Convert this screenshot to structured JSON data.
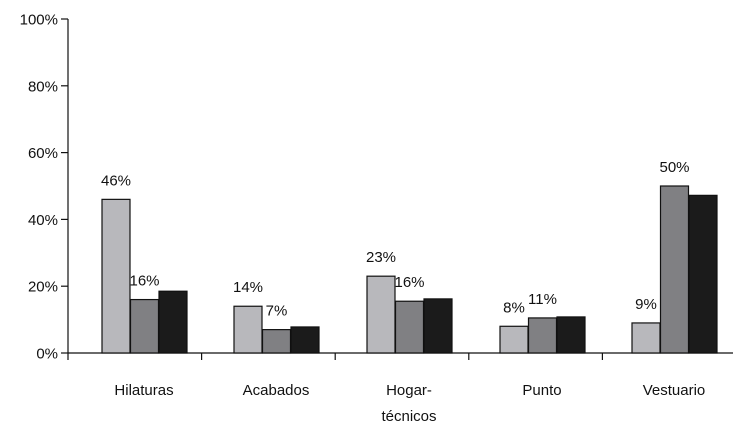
{
  "chart_data": {
    "type": "bar",
    "categories": [
      [
        "Hilaturas"
      ],
      [
        "Acabados"
      ],
      [
        "Hogar-",
        "técnicos"
      ],
      [
        "Punto"
      ],
      [
        "Vestuario"
      ]
    ],
    "series": [
      {
        "color": "#b8b8bc",
        "values": [
          46,
          14,
          23,
          8,
          9
        ]
      },
      {
        "color": "#808083",
        "values": [
          16,
          7,
          15.5,
          10.5,
          50
        ]
      },
      {
        "color": "#1b1b1b",
        "values": [
          18.5,
          7.8,
          16.2,
          10.8,
          47.2
        ]
      }
    ],
    "data_labels": [
      {
        "category": 0,
        "series": 0,
        "text": "46%"
      },
      {
        "category": 0,
        "series": 1,
        "text": "16%"
      },
      {
        "category": 1,
        "series": 0,
        "text": "14%"
      },
      {
        "category": 1,
        "series": 1,
        "text": "7%"
      },
      {
        "category": 2,
        "series": 0,
        "text": "23%"
      },
      {
        "category": 2,
        "series": 1,
        "text": "16%"
      },
      {
        "category": 3,
        "series": 0,
        "text": "8%"
      },
      {
        "category": 3,
        "series": 1,
        "text": "11%"
      },
      {
        "category": 4,
        "series": 0,
        "text": "9%"
      },
      {
        "category": 4,
        "series": 1,
        "text": "50%"
      }
    ],
    "y_ticks": [
      "0%",
      "20%",
      "40%",
      "60%",
      "80%",
      "100%"
    ],
    "ylim": [
      0,
      100
    ],
    "title": "",
    "xlabel": "",
    "ylabel": "",
    "grid": false,
    "legend": "none"
  }
}
